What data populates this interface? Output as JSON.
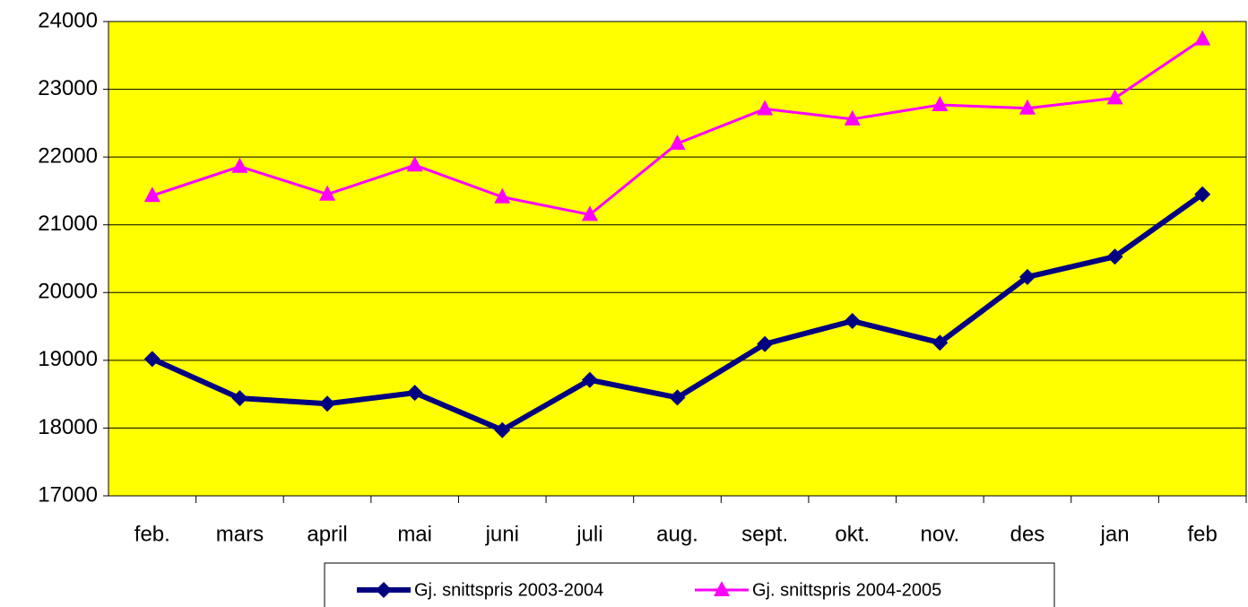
{
  "chart_data": {
    "type": "line",
    "categories": [
      "feb.",
      "mars",
      "april",
      "mai",
      "juni",
      "juli",
      "aug.",
      "sept.",
      "okt.",
      "nov.",
      "des",
      "jan",
      "feb"
    ],
    "series": [
      {
        "name": "Gj. snittspris 2003-2004",
        "color": "#000080",
        "marker": "diamond",
        "values": [
          19020,
          18440,
          18360,
          18520,
          17970,
          18710,
          18450,
          19240,
          19580,
          19260,
          20230,
          20530,
          21450
        ]
      },
      {
        "name": "Gj. snittspris 2004-2005",
        "color": "#ff00ff",
        "marker": "triangle",
        "values": [
          21430,
          21860,
          21450,
          21880,
          21410,
          21150,
          22200,
          22710,
          22560,
          22770,
          22720,
          22870,
          23740
        ]
      }
    ],
    "ylim": [
      17000,
      24000
    ],
    "yticks": [
      17000,
      18000,
      19000,
      20000,
      21000,
      22000,
      23000,
      24000
    ],
    "grid": true,
    "plot_background": "#ffff00",
    "legend": "bottom"
  }
}
